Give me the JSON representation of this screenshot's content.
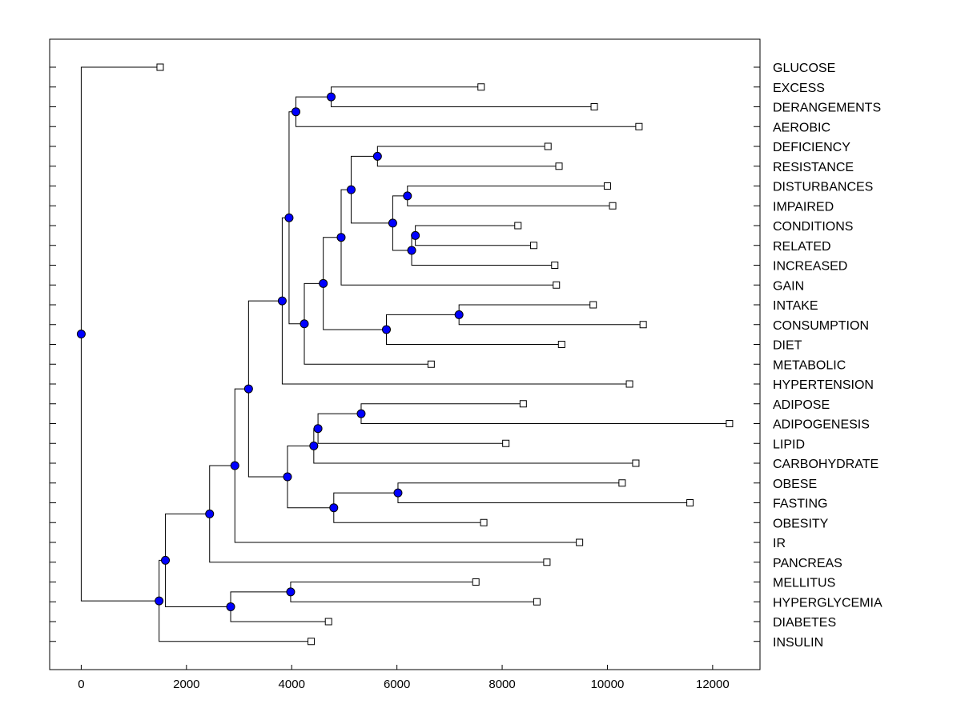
{
  "chart_data": {
    "type": "dendrogram",
    "xlabel": "",
    "ylabel": "",
    "xlim": [
      -600,
      12900
    ],
    "xticks": [
      0,
      2000,
      4000,
      6000,
      8000,
      10000,
      12000
    ],
    "colors": {
      "node": "#0000ff",
      "edge": "#000000",
      "leaf_fill": "#ffffff"
    },
    "leaves": [
      {
        "name": "GLUCOSE",
        "x": 1500
      },
      {
        "name": "EXCESS",
        "x": 7600
      },
      {
        "name": "DERANGEMENTS",
        "x": 9750
      },
      {
        "name": "AEROBIC",
        "x": 10600
      },
      {
        "name": "DEFICIENCY",
        "x": 8870
      },
      {
        "name": "RESISTANCE",
        "x": 9080
      },
      {
        "name": "DISTURBANCES",
        "x": 10000
      },
      {
        "name": "IMPAIRED",
        "x": 10100
      },
      {
        "name": "CONDITIONS",
        "x": 8300
      },
      {
        "name": "RELATED",
        "x": 8600
      },
      {
        "name": "INCREASED",
        "x": 9000
      },
      {
        "name": "GAIN",
        "x": 9030
      },
      {
        "name": "INTAKE",
        "x": 9730
      },
      {
        "name": "CONSUMPTION",
        "x": 10680
      },
      {
        "name": "DIET",
        "x": 9130
      },
      {
        "name": "METABOLIC",
        "x": 6650
      },
      {
        "name": "HYPERTENSION",
        "x": 10420
      },
      {
        "name": "ADIPOSE",
        "x": 8400
      },
      {
        "name": "ADIPOGENESIS",
        "x": 12320
      },
      {
        "name": "LIPID",
        "x": 8070
      },
      {
        "name": "CARBOHYDRATE",
        "x": 10540
      },
      {
        "name": "OBESE",
        "x": 10280
      },
      {
        "name": "FASTING",
        "x": 11570
      },
      {
        "name": "OBESITY",
        "x": 7650
      },
      {
        "name": "IR",
        "x": 9470
      },
      {
        "name": "PANCREAS",
        "x": 8850
      },
      {
        "name": "MELLITUS",
        "x": 7500
      },
      {
        "name": "HYPERGLYCEMIA",
        "x": 8660
      },
      {
        "name": "DIABETES",
        "x": 4700
      },
      {
        "name": "INSULIN",
        "x": 4370
      }
    ],
    "merges": [
      {
        "id": "n1",
        "x": 4750,
        "children": [
          "EXCESS",
          "DERANGEMENTS"
        ]
      },
      {
        "id": "n2",
        "x": 4080,
        "children": [
          "n1",
          "AEROBIC"
        ]
      },
      {
        "id": "n3",
        "x": 5630,
        "children": [
          "DEFICIENCY",
          "RESISTANCE"
        ]
      },
      {
        "id": "n4",
        "x": 6200,
        "children": [
          "DISTURBANCES",
          "IMPAIRED"
        ]
      },
      {
        "id": "n5",
        "x": 6350,
        "children": [
          "CONDITIONS",
          "RELATED"
        ]
      },
      {
        "id": "n6",
        "x": 6280,
        "children": [
          "n5",
          "INCREASED"
        ]
      },
      {
        "id": "n7",
        "x": 5920,
        "children": [
          "n4",
          "n6"
        ]
      },
      {
        "id": "n8",
        "x": 5130,
        "children": [
          "n3",
          "n7"
        ]
      },
      {
        "id": "n9",
        "x": 4940,
        "children": [
          "n8",
          "GAIN"
        ]
      },
      {
        "id": "n10",
        "x": 7180,
        "children": [
          "INTAKE",
          "CONSUMPTION"
        ]
      },
      {
        "id": "n11",
        "x": 5800,
        "children": [
          "n10",
          "DIET"
        ]
      },
      {
        "id": "n12",
        "x": 4600,
        "children": [
          "n9",
          "n11"
        ]
      },
      {
        "id": "n13",
        "x": 4240,
        "children": [
          "n12",
          "METABOLIC"
        ]
      },
      {
        "id": "n14",
        "x": 3950,
        "children": [
          "n2",
          "n13"
        ]
      },
      {
        "id": "n15",
        "x": 3820,
        "children": [
          "n14",
          "HYPERTENSION"
        ]
      },
      {
        "id": "n16",
        "x": 5320,
        "children": [
          "ADIPOSE",
          "ADIPOGENESIS"
        ]
      },
      {
        "id": "n17",
        "x": 4500,
        "children": [
          "n16",
          "LIPID"
        ]
      },
      {
        "id": "n18",
        "x": 4420,
        "children": [
          "n17",
          "CARBOHYDRATE"
        ]
      },
      {
        "id": "n19",
        "x": 6020,
        "children": [
          "OBESE",
          "FASTING"
        ]
      },
      {
        "id": "n20",
        "x": 4800,
        "children": [
          "n19",
          "OBESITY"
        ]
      },
      {
        "id": "n21",
        "x": 3920,
        "children": [
          "n18",
          "n20"
        ]
      },
      {
        "id": "n22",
        "x": 3180,
        "children": [
          "n15",
          "n21"
        ]
      },
      {
        "id": "n23",
        "x": 2920,
        "children": [
          "n22",
          "IR"
        ]
      },
      {
        "id": "n24",
        "x": 2440,
        "children": [
          "n23",
          "PANCREAS"
        ]
      },
      {
        "id": "n25",
        "x": 3980,
        "children": [
          "MELLITUS",
          "HYPERGLYCEMIA"
        ]
      },
      {
        "id": "n26",
        "x": 2840,
        "children": [
          "n25",
          "DIABETES"
        ]
      },
      {
        "id": "n27",
        "x": 1600,
        "children": [
          "n24",
          "n26"
        ]
      },
      {
        "id": "n28",
        "x": 1480,
        "children": [
          "n27",
          "INSULIN"
        ]
      },
      {
        "id": "n29",
        "x": 0,
        "children": [
          "GLUCOSE",
          "n28"
        ]
      }
    ]
  }
}
